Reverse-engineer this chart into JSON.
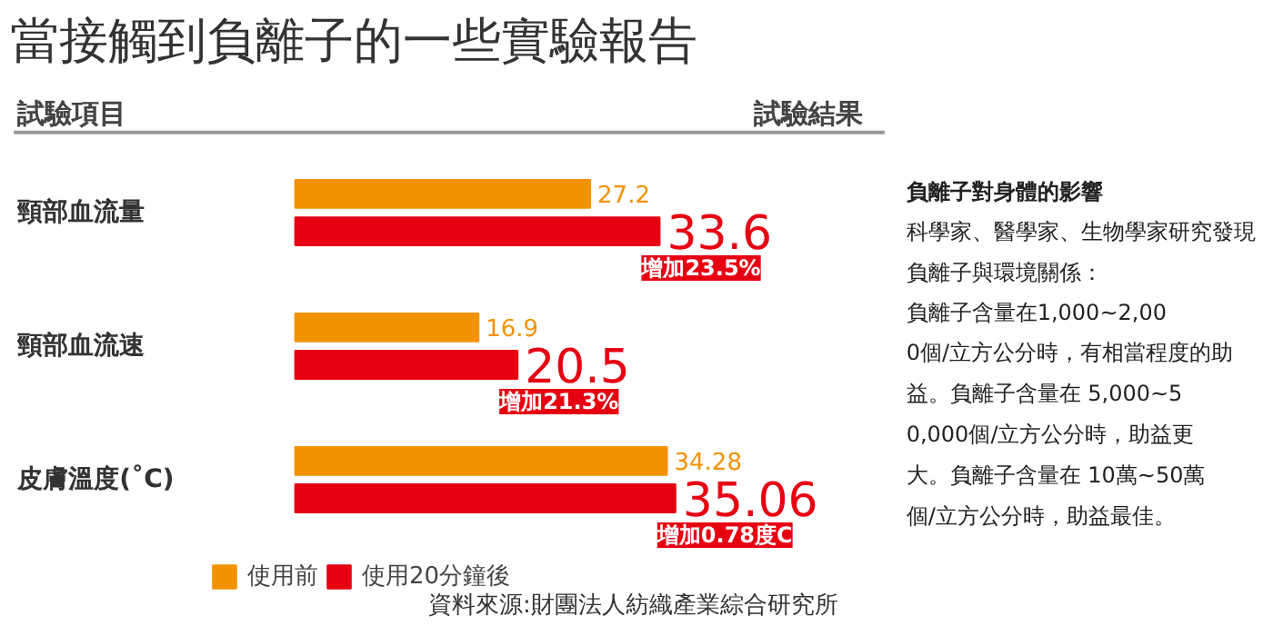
{
  "chart_data": {
    "type": "bar",
    "orientation": "horizontal",
    "title": "當接觸到負離子的一些實驗報告",
    "categories": [
      "頸部血流量",
      "頸部血流速",
      "皮膚溫度(˚C)"
    ],
    "series": [
      {
        "name": "使用前",
        "color": "#f39200",
        "values": [
          27.2,
          16.9,
          34.28
        ]
      },
      {
        "name": "使用20分鐘後",
        "color": "#e60012",
        "values": [
          33.6,
          20.5,
          35.06
        ]
      }
    ],
    "data_labels": true,
    "legend": "bottom",
    "grid": false,
    "tick_labels": "y",
    "annotations": [
      "試驗項目",
      "試驗結果",
      "資料來源:財團法人紡織產業綜合研究所",
      "負離子對身體的影響",
      "科學家、醫學家、生物學家研究發現負離子與環境關係：",
      "負離子含量在1,000~2,000個/立方公分時，有相當程度的助益。負離子含量在 5,000~50,000個/立方公分時，助益更大。負離子含量在 10萬~50萬個/立方公分時，助益最佳。",
      {
        "text": "增加23.5%",
        "x": 33.6,
        "y": "頸部血流量"
      },
      {
        "text": "增加21.3%",
        "x": 20.5,
        "y": "頸部血流速"
      },
      {
        "text": "增加0.78度C",
        "x": 35.06,
        "y": "皮膚溫度(˚C)"
      }
    ]
  }
}
